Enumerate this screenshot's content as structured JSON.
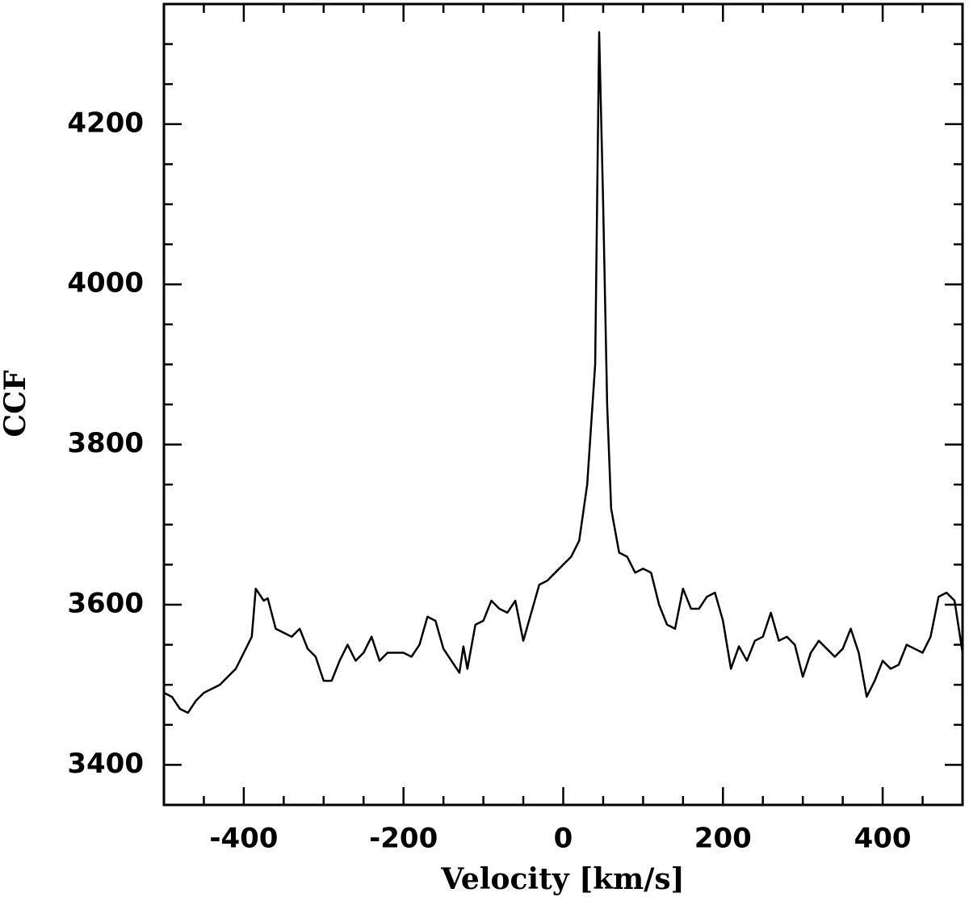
{
  "chart_data": {
    "type": "line",
    "xlabel": "Velocity [km/s]",
    "ylabel": "CCF",
    "x": [
      -500,
      -490,
      -480,
      -470,
      -460,
      -450,
      -440,
      -430,
      -420,
      -410,
      -400,
      -390,
      -385,
      -375,
      -370,
      -360,
      -350,
      -340,
      -330,
      -320,
      -310,
      -300,
      -290,
      -280,
      -270,
      -260,
      -250,
      -240,
      -230,
      -220,
      -210,
      -200,
      -190,
      -180,
      -170,
      -160,
      -150,
      -140,
      -130,
      -125,
      -120,
      -110,
      -100,
      -90,
      -80,
      -70,
      -60,
      -50,
      -40,
      -30,
      -20,
      -10,
      0,
      10,
      20,
      30,
      40,
      45,
      50,
      55,
      60,
      70,
      80,
      90,
      100,
      110,
      120,
      130,
      140,
      150,
      160,
      170,
      180,
      190,
      200,
      210,
      220,
      230,
      240,
      250,
      260,
      270,
      280,
      290,
      300,
      310,
      320,
      330,
      340,
      350,
      360,
      370,
      380,
      390,
      400,
      410,
      420,
      430,
      440,
      450,
      460,
      470,
      480,
      490,
      500
    ],
    "series": [
      {
        "name": "CCF",
        "color": "#000000",
        "values": [
          3490,
          3485,
          3470,
          3465,
          3480,
          3490,
          3495,
          3500,
          3510,
          3520,
          3540,
          3560,
          3620,
          3605,
          3608,
          3570,
          3565,
          3560,
          3570,
          3545,
          3535,
          3505,
          3505,
          3530,
          3550,
          3530,
          3540,
          3560,
          3530,
          3540,
          3540,
          3540,
          3535,
          3550,
          3585,
          3580,
          3545,
          3530,
          3515,
          3548,
          3520,
          3575,
          3580,
          3605,
          3595,
          3590,
          3605,
          3555,
          3590,
          3625,
          3630,
          3640,
          3650,
          3660,
          3680,
          3750,
          3900,
          4315,
          4100,
          3850,
          3720,
          3665,
          3660,
          3640,
          3645,
          3640,
          3600,
          3575,
          3570,
          3620,
          3595,
          3595,
          3610,
          3615,
          3580,
          3520,
          3548,
          3530,
          3555,
          3560,
          3590,
          3555,
          3560,
          3550,
          3510,
          3540,
          3555,
          3545,
          3535,
          3545,
          3570,
          3540,
          3485,
          3505,
          3530,
          3520,
          3525,
          3550,
          3545,
          3540,
          3560,
          3610,
          3615,
          3605,
          3540
        ]
      }
    ],
    "xlim": [
      -500,
      500
    ],
    "ylim": [
      3350,
      4350
    ],
    "xticks": [
      -400,
      -200,
      0,
      200,
      400
    ],
    "yticks": [
      3400,
      3600,
      3800,
      4000,
      4200
    ],
    "xminorticks": [
      -450,
      -350,
      -300,
      -250,
      -150,
      -100,
      -50,
      50,
      100,
      150,
      250,
      300,
      350,
      450
    ],
    "yminorticks": [
      3350,
      3450,
      3500,
      3550,
      3650,
      3700,
      3750,
      3850,
      3900,
      3950,
      4050,
      4100,
      4150,
      4250,
      4300,
      4350
    ]
  }
}
